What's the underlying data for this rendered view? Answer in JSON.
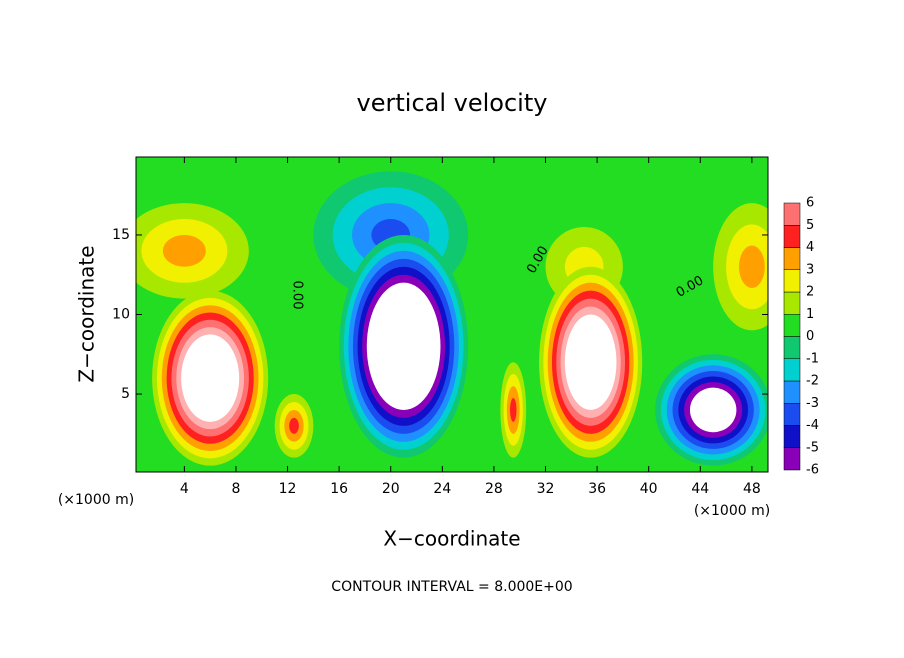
{
  "chart_data": {
    "type": "contour",
    "title": "vertical velocity",
    "xlabel": "X−coordinate",
    "ylabel": "Z−coordinate",
    "xunit": "(×1000 m)",
    "yunit": "(×1000 m)",
    "footer": "CONTOUR INTERVAL = 8.000E+00",
    "xlim": [
      0.25,
      49.25
    ],
    "ylim": [
      0.1,
      19.9
    ],
    "xticks": [
      4,
      8,
      12,
      16,
      20,
      24,
      28,
      32,
      36,
      40,
      44,
      48
    ],
    "yticks": [
      5,
      10,
      15
    ],
    "background": "#22dd22",
    "levels": [
      -6,
      -5,
      -4,
      -3,
      -2,
      -1,
      0,
      1,
      2,
      3,
      4,
      5,
      6
    ],
    "level_colors": [
      "#8a00b8",
      "#1010c8",
      "#1a4cf0",
      "#1e90ff",
      "#00d0d0",
      "#10c870",
      "#22dd22",
      "#a8e800",
      "#f0f000",
      "#ffa000",
      "#ff2020",
      "#ff7070",
      "#ffb0b0"
    ],
    "contour_labels": [
      "0.00",
      "0.00",
      "0.00"
    ],
    "features": [
      {
        "x": 4,
        "z": 14,
        "rx": 5,
        "rz": 3,
        "value": 3
      },
      {
        "x": 48,
        "z": 13,
        "rx": 3,
        "rz": 4,
        "value": 3
      },
      {
        "x": 20,
        "z": 15,
        "rx": 6,
        "rz": 4,
        "value": -4
      },
      {
        "x": 35,
        "z": 13,
        "rx": 3,
        "rz": 2.5,
        "value": 2
      },
      {
        "x": 6,
        "z": 6,
        "rx": 4.5,
        "rz": 5.5,
        "value": 12
      },
      {
        "x": 21,
        "z": 8,
        "rx": 5,
        "rz": 7,
        "value": -14
      },
      {
        "x": 35.5,
        "z": 7,
        "rx": 4,
        "rz": 6,
        "value": 12
      },
      {
        "x": 45,
        "z": 4,
        "rx": 4.5,
        "rz": 3.5,
        "value": -10
      },
      {
        "x": 12.5,
        "z": 3,
        "rx": 1.5,
        "rz": 2,
        "value": 4
      },
      {
        "x": 29.5,
        "z": 4,
        "rx": 1,
        "rz": 3,
        "value": 4
      }
    ]
  }
}
